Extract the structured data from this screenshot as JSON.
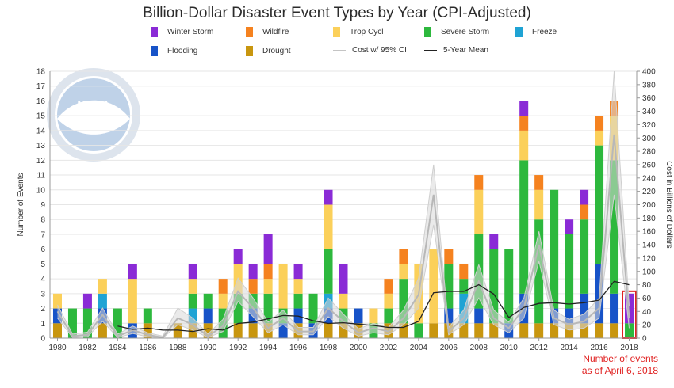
{
  "title": "Billion-Dollar Disaster Event Types by Year (CPI-Adjusted)",
  "note": {
    "line1": "Number of events",
    "line2": "as of April 6, 2018",
    "color": "#e02020"
  },
  "logo": {
    "text": "NOAA"
  },
  "legend": [
    {
      "label": "Winter Storm",
      "kind": "swatch",
      "color": "#8a2bd6"
    },
    {
      "label": "Wildfire",
      "kind": "swatch",
      "color": "#f5821f"
    },
    {
      "label": "Trop Cycl",
      "kind": "swatch",
      "color": "#fbd05a"
    },
    {
      "label": "Severe Storm",
      "kind": "swatch",
      "color": "#2db83d"
    },
    {
      "label": "Freeze",
      "kind": "swatch",
      "color": "#1fa3d4"
    },
    {
      "label": "Flooding",
      "kind": "swatch",
      "color": "#1753c8"
    },
    {
      "label": "Drought",
      "kind": "swatch",
      "color": "#c8960f"
    },
    {
      "label": "Cost w/ 95% CI",
      "kind": "line",
      "color": "#c4c4c4"
    },
    {
      "label": "5-Year Mean",
      "kind": "line",
      "color": "#222222"
    }
  ],
  "chart_data": {
    "type": "bar",
    "stacked": true,
    "title": "Billion-Dollar Disaster Event Types by Year (CPI-Adjusted)",
    "ylabel": "Number of Events",
    "y2label": "Cost in Billions of Dollars",
    "ylim": [
      0,
      18
    ],
    "y2lim": [
      0,
      400
    ],
    "grid": true,
    "legend_position": "top",
    "x": [
      1980,
      1981,
      1982,
      1983,
      1984,
      1985,
      1986,
      1987,
      1988,
      1989,
      1990,
      1991,
      1992,
      1993,
      1994,
      1995,
      1996,
      1997,
      1998,
      1999,
      2000,
      2001,
      2002,
      2003,
      2004,
      2005,
      2006,
      2007,
      2008,
      2009,
      2010,
      2011,
      2012,
      2013,
      2014,
      2015,
      2016,
      2017,
      2018
    ],
    "x_tick_labels": [
      "1980",
      "1982",
      "1984",
      "1986",
      "1988",
      "1990",
      "1992",
      "1994",
      "1996",
      "1998",
      "2000",
      "2002",
      "2004",
      "2006",
      "2008",
      "2010",
      "2012",
      "2014",
      "2016",
      "2018"
    ],
    "y_ticks": [
      0,
      1,
      2,
      3,
      4,
      5,
      6,
      7,
      8,
      9,
      10,
      11,
      12,
      13,
      14,
      15,
      16,
      17,
      18
    ],
    "y2_ticks": [
      0,
      20,
      40,
      60,
      80,
      100,
      120,
      140,
      160,
      180,
      200,
      220,
      240,
      260,
      280,
      300,
      320,
      340,
      360,
      380,
      400
    ],
    "series": [
      {
        "name": "Drought",
        "color": "#c8960f",
        "values": [
          1,
          0,
          0,
          1,
          0,
          0,
          1,
          0,
          1,
          1,
          1,
          0,
          1,
          1,
          1,
          0,
          1,
          0,
          1,
          1,
          1,
          0,
          1,
          1,
          0,
          1,
          1,
          1,
          1,
          1,
          0,
          1,
          1,
          1,
          1,
          1,
          1,
          1,
          0
        ]
      },
      {
        "name": "Flooding",
        "color": "#1753c8",
        "values": [
          1,
          0,
          0,
          1,
          0,
          1,
          0,
          0,
          0,
          0,
          1,
          0,
          0,
          1,
          0,
          1,
          1,
          1,
          1,
          0,
          1,
          0,
          0,
          0,
          0,
          0,
          1,
          0,
          1,
          0,
          1,
          2,
          0,
          1,
          1,
          2,
          4,
          2,
          0
        ]
      },
      {
        "name": "Freeze",
        "color": "#1fa3d4",
        "values": [
          0,
          0,
          0,
          1,
          0,
          0,
          0,
          0,
          0,
          1,
          0,
          0,
          0,
          0,
          0,
          0,
          0,
          0,
          1,
          0,
          0,
          0,
          0,
          0,
          0,
          0,
          0,
          2,
          0,
          0,
          0,
          0,
          0,
          0,
          0,
          0,
          0,
          0,
          0
        ]
      },
      {
        "name": "Severe Storm",
        "color": "#2db83d",
        "values": [
          0,
          2,
          2,
          0,
          2,
          0,
          1,
          0,
          0,
          1,
          1,
          2,
          2,
          1,
          2,
          1,
          1,
          2,
          3,
          1,
          0,
          1,
          1,
          3,
          1,
          0,
          3,
          1,
          5,
          5,
          5,
          9,
          7,
          8,
          5,
          5,
          8,
          9,
          1
        ]
      },
      {
        "name": "Trop Cycl",
        "color": "#fbd05a",
        "values": [
          1,
          0,
          0,
          1,
          0,
          3,
          0,
          0,
          0,
          1,
          0,
          1,
          2,
          0,
          1,
          3,
          1,
          0,
          3,
          1,
          0,
          1,
          1,
          1,
          4,
          5,
          0,
          0,
          3,
          0,
          0,
          2,
          2,
          0,
          0,
          0,
          1,
          3,
          0
        ]
      },
      {
        "name": "Wildfire",
        "color": "#f5821f",
        "values": [
          0,
          0,
          0,
          0,
          0,
          0,
          0,
          0,
          0,
          0,
          0,
          1,
          0,
          1,
          1,
          0,
          0,
          0,
          0,
          0,
          0,
          0,
          1,
          1,
          0,
          0,
          1,
          1,
          1,
          0,
          0,
          1,
          1,
          0,
          0,
          1,
          1,
          1,
          0
        ]
      },
      {
        "name": "Winter Storm",
        "color": "#8a2bd6",
        "values": [
          0,
          0,
          1,
          0,
          0,
          1,
          0,
          0,
          0,
          1,
          0,
          0,
          1,
          1,
          2,
          0,
          1,
          0,
          1,
          2,
          0,
          0,
          0,
          0,
          0,
          0,
          0,
          0,
          0,
          1,
          0,
          1,
          0,
          0,
          1,
          1,
          0,
          0,
          2
        ]
      }
    ],
    "lines": [
      {
        "name": "Cost w/ 95% CI",
        "axis": "right",
        "color": "#b8b8b8",
        "values": [
          40,
          3,
          5,
          35,
          3,
          12,
          5,
          1,
          30,
          20,
          3,
          18,
          70,
          45,
          15,
          30,
          10,
          10,
          45,
          25,
          8,
          15,
          10,
          30,
          65,
          215,
          10,
          30,
          85,
          30,
          15,
          45,
          140,
          30,
          20,
          25,
          45,
          305,
          30
        ],
        "ci_upper": [
          50,
          6,
          9,
          45,
          6,
          18,
          8,
          3,
          45,
          30,
          6,
          28,
          90,
          60,
          24,
          42,
          16,
          16,
          60,
          36,
          14,
          22,
          16,
          42,
          90,
          260,
          16,
          42,
          110,
          42,
          24,
          60,
          160,
          42,
          28,
          36,
          60,
          400,
          48
        ],
        "ci_lower": [
          30,
          1,
          2,
          25,
          1,
          7,
          2,
          0,
          20,
          12,
          1,
          10,
          55,
          32,
          8,
          20,
          5,
          5,
          32,
          15,
          3,
          8,
          5,
          20,
          45,
          170,
          5,
          20,
          60,
          20,
          8,
          30,
          115,
          20,
          12,
          15,
          30,
          215,
          15
        ]
      },
      {
        "name": "5-Year Mean",
        "axis": "right",
        "color": "#222222",
        "values": [
          null,
          null,
          null,
          null,
          18,
          13,
          15,
          12,
          12,
          10,
          14,
          12,
          22,
          24,
          29,
          34,
          33,
          26,
          22,
          23,
          21,
          19,
          16,
          16,
          25,
          68,
          70,
          70,
          80,
          66,
          31,
          46,
          52,
          53,
          51,
          53,
          57,
          85,
          80
        ]
      }
    ]
  }
}
